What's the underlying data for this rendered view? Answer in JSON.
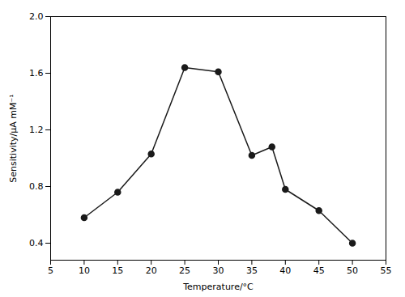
{
  "chart_data": {
    "type": "line",
    "x": [
      10,
      15,
      20,
      25,
      30,
      35,
      38,
      40,
      45,
      50
    ],
    "values": [
      0.58,
      0.76,
      1.03,
      1.64,
      1.61,
      1.02,
      1.08,
      0.78,
      0.63,
      0.4
    ],
    "color": "#1a1a1a",
    "marker": "circle",
    "xlabel": "Temperature/°C",
    "ylabel": "Sensitivity/μA mM⁻¹",
    "xlim": [
      5,
      55
    ],
    "ylim": [
      0.28,
      2.0
    ],
    "xticks": [
      5,
      10,
      15,
      20,
      25,
      30,
      35,
      40,
      45,
      50,
      55
    ],
    "yticks": [
      0.4,
      0.8,
      1.2,
      1.6,
      {
        "value": 2.0,
        "label": "2.0"
      }
    ],
    "grid": false
  }
}
